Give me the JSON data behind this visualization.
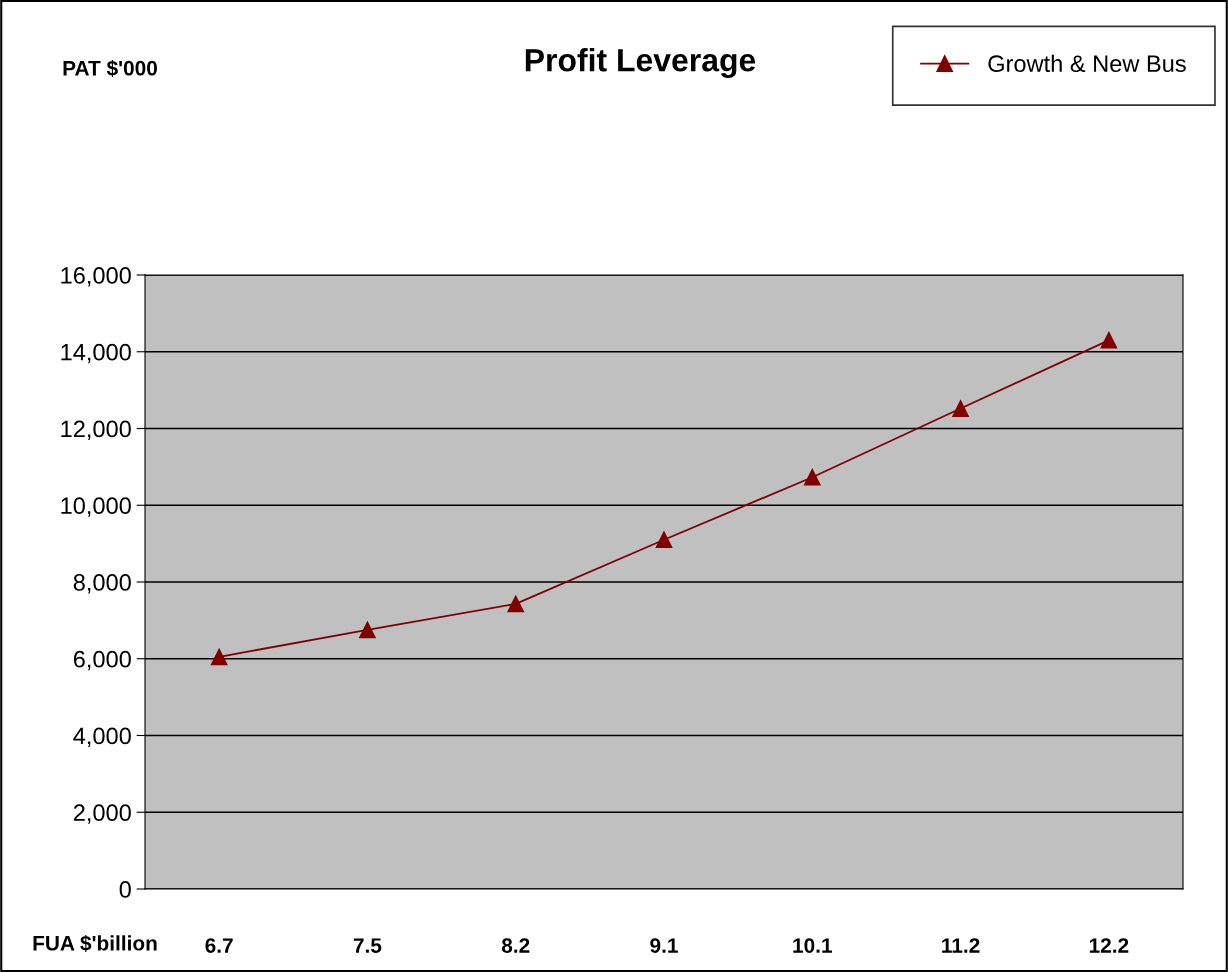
{
  "chart_data": {
    "type": "line",
    "title": "Profit Leverage",
    "annotations": [
      "PAT $'000"
    ],
    "xlabel": "FUA $'billion",
    "categories": [
      "6.7",
      "7.5",
      "8.2",
      "9.1",
      "10.1",
      "11.2",
      "12.2"
    ],
    "series": [
      {
        "name": "Growth & New Bus",
        "color": "#800000",
        "values": [
          6050,
          6750,
          7430,
          9100,
          10730,
          12520,
          14300
        ]
      }
    ],
    "ylim": [
      0,
      16000
    ],
    "yticks": [
      {
        "value": 0,
        "label": "0"
      },
      {
        "value": 2000,
        "label": "2,000"
      },
      {
        "value": 4000,
        "label": "4,000"
      },
      {
        "value": 6000,
        "label": "6,000"
      },
      {
        "value": 8000,
        "label": "8,000"
      },
      {
        "value": 10000,
        "label": "10,000"
      },
      {
        "value": 12000,
        "label": "12,000"
      },
      {
        "value": 14000,
        "label": "14,000"
      },
      {
        "value": 16000,
        "label": "16,000"
      }
    ],
    "grid": "y",
    "legend": "top right",
    "marker": "triangle",
    "line_style": "solid"
  }
}
